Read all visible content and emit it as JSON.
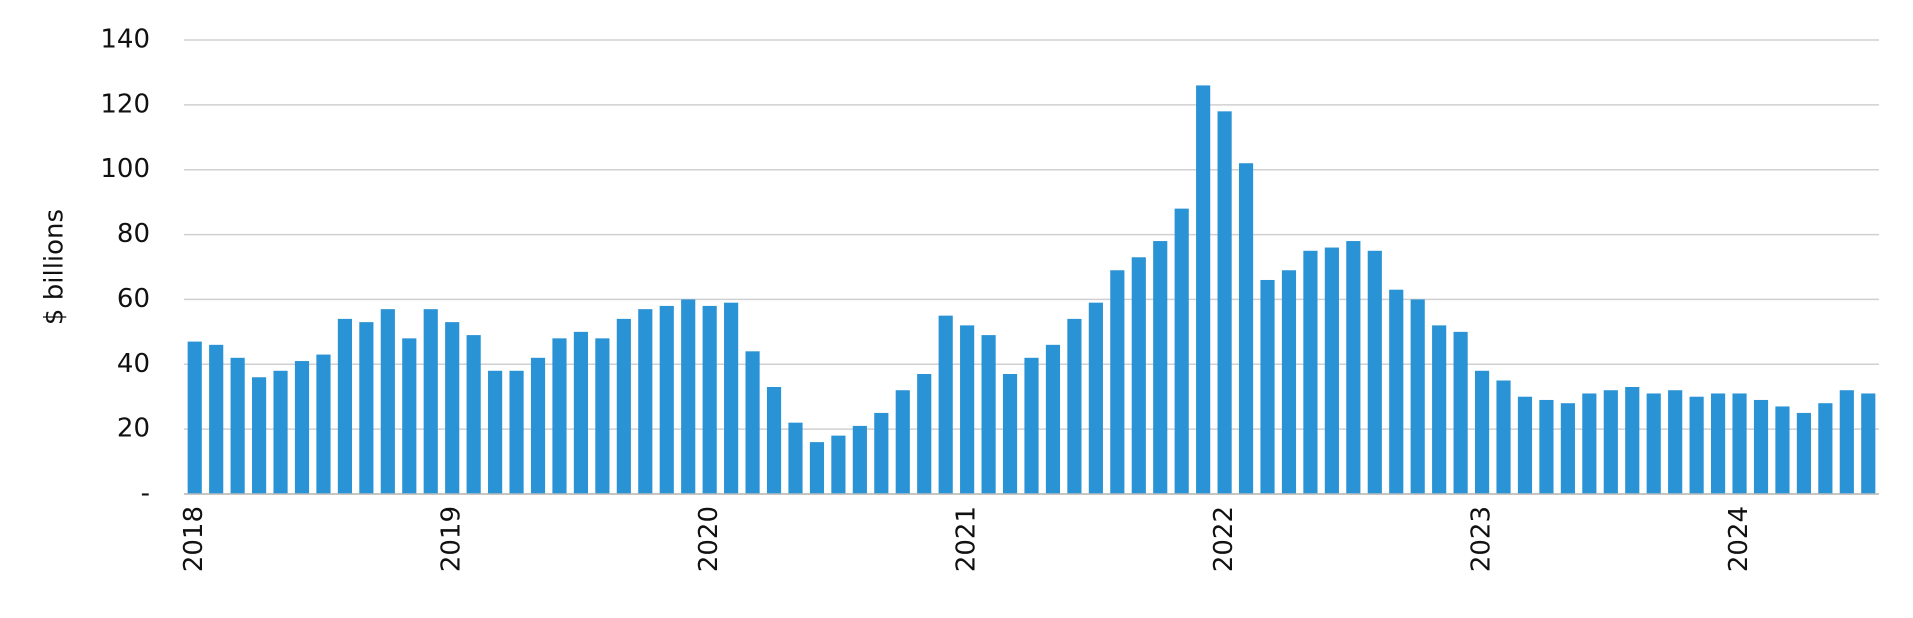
{
  "chart_data": {
    "type": "bar",
    "ylabel": "$ billions",
    "categories": [
      "2018",
      null,
      null,
      null,
      null,
      null,
      null,
      null,
      null,
      null,
      null,
      null,
      "2019",
      null,
      null,
      null,
      null,
      null,
      null,
      null,
      null,
      null,
      null,
      null,
      "2020",
      null,
      null,
      null,
      null,
      null,
      null,
      null,
      null,
      null,
      null,
      null,
      "2021",
      null,
      null,
      null,
      null,
      null,
      null,
      null,
      null,
      null,
      null,
      null,
      "2022",
      null,
      null,
      null,
      null,
      null,
      null,
      null,
      null,
      null,
      null,
      null,
      "2023",
      null,
      null,
      null,
      null,
      null,
      null,
      null,
      null,
      null,
      null,
      null,
      "2024",
      null,
      null,
      null,
      null,
      null,
      null
    ],
    "values": [
      47,
      46,
      42,
      36,
      38,
      41,
      43,
      54,
      53,
      57,
      48,
      57,
      53,
      49,
      38,
      38,
      42,
      48,
      50,
      48,
      54,
      57,
      58,
      60,
      58,
      59,
      44,
      33,
      22,
      16,
      18,
      21,
      25,
      32,
      37,
      55,
      52,
      49,
      37,
      42,
      46,
      54,
      59,
      69,
      73,
      78,
      88,
      126,
      118,
      102,
      66,
      69,
      75,
      76,
      78,
      75,
      63,
      60,
      52,
      50,
      38,
      35,
      30,
      29,
      28,
      31,
      32,
      33,
      31,
      32,
      30,
      31,
      31,
      29,
      27,
      25,
      28,
      32,
      31
    ],
    "color": "#2a93d5",
    "ylim": [
      0,
      140
    ],
    "yticks": [
      {
        "value": 0,
        "label": "-"
      },
      20,
      40,
      60,
      80,
      100,
      120,
      140
    ],
    "grid": true
  }
}
